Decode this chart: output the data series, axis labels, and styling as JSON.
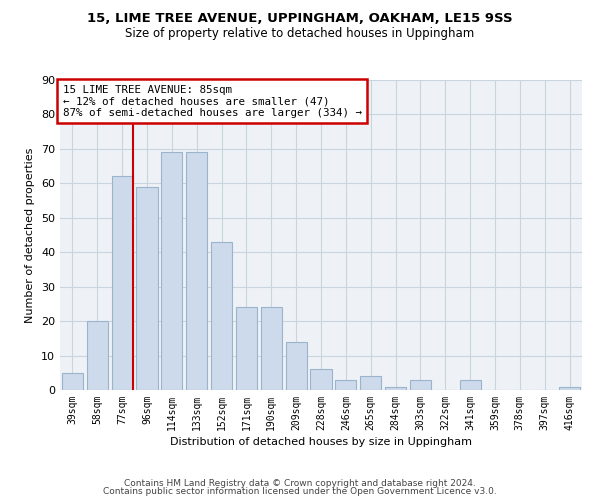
{
  "title1": "15, LIME TREE AVENUE, UPPINGHAM, OAKHAM, LE15 9SS",
  "title2": "Size of property relative to detached houses in Uppingham",
  "xlabel": "Distribution of detached houses by size in Uppingham",
  "ylabel": "Number of detached properties",
  "categories": [
    "39sqm",
    "58sqm",
    "77sqm",
    "96sqm",
    "114sqm",
    "133sqm",
    "152sqm",
    "171sqm",
    "190sqm",
    "209sqm",
    "228sqm",
    "246sqm",
    "265sqm",
    "284sqm",
    "303sqm",
    "322sqm",
    "341sqm",
    "359sqm",
    "378sqm",
    "397sqm",
    "416sqm"
  ],
  "values": [
    5,
    20,
    62,
    59,
    69,
    69,
    43,
    24,
    24,
    14,
    6,
    3,
    4,
    1,
    3,
    0,
    3,
    0,
    0,
    0,
    1
  ],
  "bar_color": "#ccdaeb",
  "bar_edge_color": "#9ab4cc",
  "annotation_line1": "15 LIME TREE AVENUE: 85sqm",
  "annotation_line2": "← 12% of detached houses are smaller (47)",
  "annotation_line3": "87% of semi-detached houses are larger (334) →",
  "vline_color": "#cc0000",
  "box_color": "#cc0000",
  "ylim": [
    0,
    90
  ],
  "yticks": [
    0,
    10,
    20,
    30,
    40,
    50,
    60,
    70,
    80,
    90
  ],
  "grid_color": "#c8d4de",
  "background_color": "#eef2f7",
  "footer_line1": "Contains HM Land Registry data © Crown copyright and database right 2024.",
  "footer_line2": "Contains public sector information licensed under the Open Government Licence v3.0."
}
